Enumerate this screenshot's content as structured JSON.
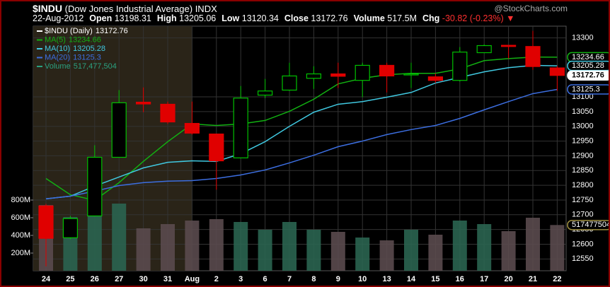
{
  "header": {
    "symbol": "$INDU",
    "name": "(Dow Jones Industrial Average)",
    "exchange": "INDX",
    "watermark": "@StockCharts.com",
    "date": "22-Aug-2012",
    "fields": [
      {
        "label": "Open",
        "value": "13198.31"
      },
      {
        "label": "High",
        "value": "13205.06"
      },
      {
        "label": "Low",
        "value": "13120.34"
      },
      {
        "label": "Close",
        "value": "13172.76"
      },
      {
        "label": "Volume",
        "value": "517.5M"
      },
      {
        "label": "Chg",
        "value": "-30.82 (-0.23%)"
      }
    ]
  },
  "chart_data": {
    "type": "candlestick",
    "price_label": "$INDU (Daily)",
    "categories": [
      "24",
      "25",
      "26",
      "27",
      "30",
      "31",
      "Aug",
      "2",
      "3",
      "6",
      "7",
      "8",
      "9",
      "10",
      "13",
      "14",
      "15",
      "16",
      "17",
      "20",
      "21",
      "22"
    ],
    "open": [
      12730,
      12622,
      12696,
      12895,
      13082,
      13075,
      13010,
      12974,
      12893,
      13106,
      13123,
      13163,
      13178,
      13156,
      13207,
      13175,
      13168,
      13156,
      13250,
      13275,
      13271,
      13198.31
    ],
    "high": [
      12737,
      12696,
      12936,
      13123,
      13132,
      13084,
      13084,
      12974,
      13137,
      13161,
      13216,
      13204,
      13216,
      13216,
      13216,
      13216,
      13180,
      13269,
      13278,
      13275,
      13324,
      13205.06
    ],
    "low": [
      12525,
      12617,
      12694,
      12895,
      13048,
      13008,
      12972,
      12785,
      12893,
      13096,
      13120,
      13127,
      13130,
      13099,
      13115,
      13130,
      13147,
      13152,
      13250,
      13230,
      13192,
      13120.34
    ],
    "close": [
      12620,
      12687,
      12895,
      13080,
      13076,
      13015,
      12977,
      12883,
      13096,
      13120,
      13171,
      13178,
      13170,
      13207,
      13171,
      13178,
      13156,
      13252,
      13274,
      13271,
      13203,
      13172.76
    ],
    "up_color": "#00c000",
    "down_color": "#e00000",
    "series": [
      {
        "name": "MA(5)",
        "color": "#12b012",
        "values": [
          12823,
          12768,
          12749,
          12809,
          12881,
          12948,
          13008,
          13003,
          13008,
          13020,
          13051,
          13092,
          13144,
          13163,
          13175,
          13180,
          13180,
          13195,
          13223,
          13230,
          13235,
          13234.66
        ]
      },
      {
        "name": "MA(10)",
        "color": "#40c8e0",
        "values": [
          12754,
          12763,
          12797,
          12828,
          12859,
          12878,
          12883,
          12881,
          12907,
          12948,
          13000,
          13048,
          13075,
          13084,
          13099,
          13115,
          13147,
          13166,
          13185,
          13199,
          13207,
          13205.28
        ]
      },
      {
        "name": "MA(20)",
        "color": "#3c6ee0",
        "values": [
          12754,
          12763,
          12780,
          12799,
          12809,
          12814,
          12816,
          12823,
          12835,
          12852,
          12876,
          12902,
          12931,
          12950,
          12972,
          12989,
          13003,
          13027,
          13056,
          13084,
          13111,
          13125.3
        ]
      }
    ],
    "volume": {
      "name": "Volume",
      "legend_value": "517,477,504",
      "up_color": "#2a6450",
      "down_color": "#5a4a4e",
      "values": [
        744000000,
        608000000,
        664000000,
        760000000,
        480000000,
        528000000,
        568000000,
        584000000,
        552000000,
        464000000,
        552000000,
        464000000,
        440000000,
        376000000,
        344000000,
        464000000,
        408000000,
        568000000,
        528000000,
        448000000,
        600000000,
        517477504
      ],
      "ylim": [
        0,
        2768000000
      ],
      "yticks": [
        {
          "value": 200000000,
          "label": "200M"
        },
        {
          "value": 400000000,
          "label": "400M"
        },
        {
          "value": 600000000,
          "label": "600M"
        },
        {
          "value": 800000000,
          "label": "800M"
        }
      ]
    },
    "ylim": [
      12510,
      13340
    ],
    "yticks": [
      13300,
      13100,
      13050,
      13000,
      12950,
      12900,
      12850,
      12800,
      12750,
      12700,
      12650,
      12600,
      12550
    ],
    "grid": true
  }
}
